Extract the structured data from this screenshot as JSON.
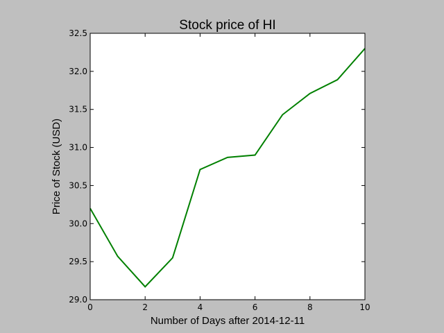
{
  "chart_data": {
    "type": "line",
    "title": "Stock price of HI",
    "xlabel": "Number of Days after 2014-12-11",
    "ylabel": "Price of Stock (USD)",
    "xlim": [
      0,
      10
    ],
    "ylim": [
      29.0,
      32.5
    ],
    "xticks": [
      0,
      2,
      4,
      6,
      8,
      10
    ],
    "yticks": [
      29.0,
      29.5,
      30.0,
      30.5,
      31.0,
      31.5,
      32.0,
      32.5
    ],
    "xtick_labels": [
      "0",
      "2",
      "4",
      "6",
      "8",
      "10"
    ],
    "ytick_labels": [
      "29.0",
      "29.5",
      "30.0",
      "30.5",
      "31.0",
      "31.5",
      "32.0",
      "32.5"
    ],
    "grid": false,
    "series": [
      {
        "color": "#008000",
        "x": [
          0,
          1,
          2,
          3,
          4,
          5,
          6,
          7,
          8,
          9,
          10
        ],
        "values": [
          30.2,
          29.57,
          29.17,
          29.55,
          30.71,
          30.87,
          30.9,
          31.43,
          31.71,
          31.89,
          32.3
        ]
      }
    ]
  }
}
